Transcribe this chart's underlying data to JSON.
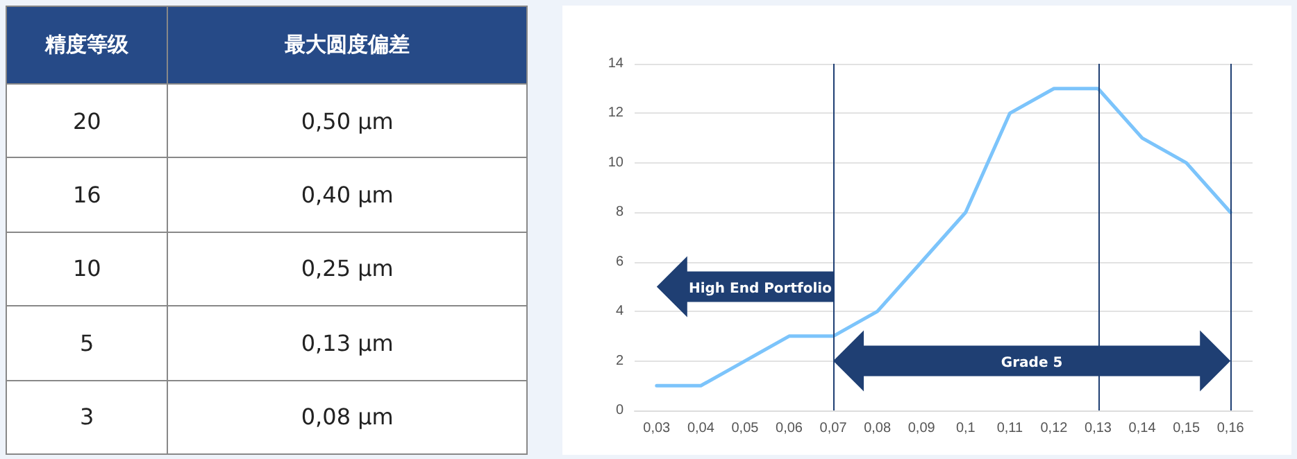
{
  "chart_data": [
    {
      "type": "other",
      "annotations": [
        "精度等级",
        "最大圆度偏差",
        "20",
        "0,50 µm",
        "16",
        "0,40 µm",
        "10",
        "0,25 µm",
        "5",
        "0,13 µm",
        "3",
        "0,08 µm"
      ]
    },
    {
      "type": "line",
      "categories": [
        "0,03",
        "0,04",
        "0,05",
        "0,06",
        "0,07",
        "0,08",
        "0,09",
        "0,1",
        "0,11",
        "0,12",
        "0,13",
        "0,14",
        "0,15",
        "0,16"
      ],
      "series": [
        {
          "color": "#7cc4fb",
          "values": [
            1,
            1,
            2,
            3,
            3,
            4,
            6,
            8,
            12,
            13,
            13,
            11,
            10,
            8
          ]
        }
      ],
      "ylim": [
        0,
        14
      ],
      "yticks": [
        0,
        2,
        4,
        6,
        8,
        10,
        12,
        14
      ],
      "grid": "y",
      "marker": "none",
      "line_style": "solid",
      "ref_lines": [
        {
          "axis": "x",
          "value": "0,07",
          "color": "#1f3f73"
        },
        {
          "axis": "x",
          "value": "0,13",
          "color": "#1f3f73"
        },
        {
          "axis": "x",
          "value": "0,16",
          "color": "#1f3f73"
        }
      ],
      "annotations": [
        "High End Portfolio",
        "Grade 5"
      ]
    }
  ]
}
